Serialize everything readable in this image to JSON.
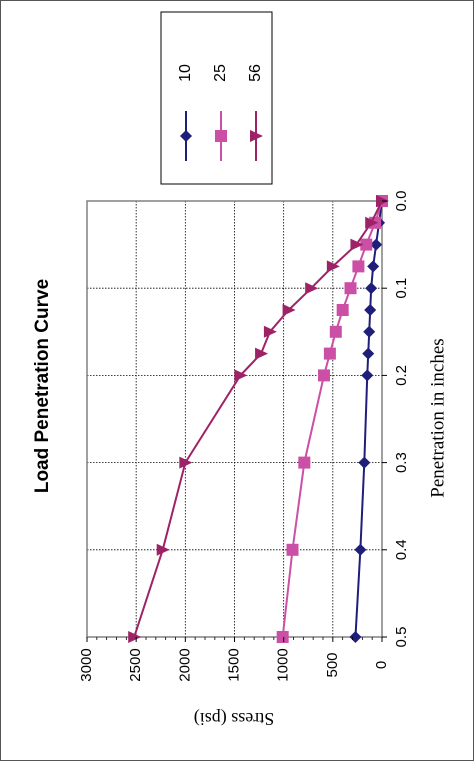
{
  "chart_data": {
    "type": "line",
    "title": "Load Penetration Curve",
    "xlabel": "Penetration in inches",
    "ylabel": "Stress (psi)",
    "xlim": [
      0,
      0.5
    ],
    "ylim": [
      0,
      3000
    ],
    "x_ticks": [
      "0.0",
      "0.1",
      "0.2",
      "0.3",
      "0.4",
      "0.5"
    ],
    "y_ticks": [
      "0",
      "500",
      "1000",
      "1500",
      "2000",
      "2500",
      "3000"
    ],
    "grid": true,
    "legend_position": "right",
    "orientation": "rotated-90-clockwise",
    "series": [
      {
        "name": "10",
        "color": "#1f1f7a",
        "marker": "diamond",
        "x": [
          0,
          0.025,
          0.05,
          0.075,
          0.1,
          0.125,
          0.15,
          0.175,
          0.2,
          0.3,
          0.4,
          0.5
        ],
        "values": [
          0,
          30,
          60,
          90,
          110,
          120,
          130,
          140,
          150,
          180,
          220,
          270
        ]
      },
      {
        "name": "25",
        "color": "#cc4fa6",
        "marker": "square",
        "x": [
          0,
          0.025,
          0.05,
          0.075,
          0.1,
          0.125,
          0.15,
          0.175,
          0.2,
          0.3,
          0.4,
          0.5
        ],
        "values": [
          0,
          70,
          160,
          240,
          320,
          400,
          470,
          530,
          590,
          790,
          910,
          1010
        ]
      },
      {
        "name": "56",
        "color": "#9e2366",
        "marker": "triangle",
        "x": [
          0,
          0.025,
          0.05,
          0.075,
          0.1,
          0.125,
          0.15,
          0.175,
          0.2,
          0.3,
          0.4,
          0.5
        ],
        "values": [
          0,
          110,
          260,
          500,
          720,
          950,
          1140,
          1230,
          1440,
          2000,
          2230,
          2520
        ]
      }
    ]
  }
}
